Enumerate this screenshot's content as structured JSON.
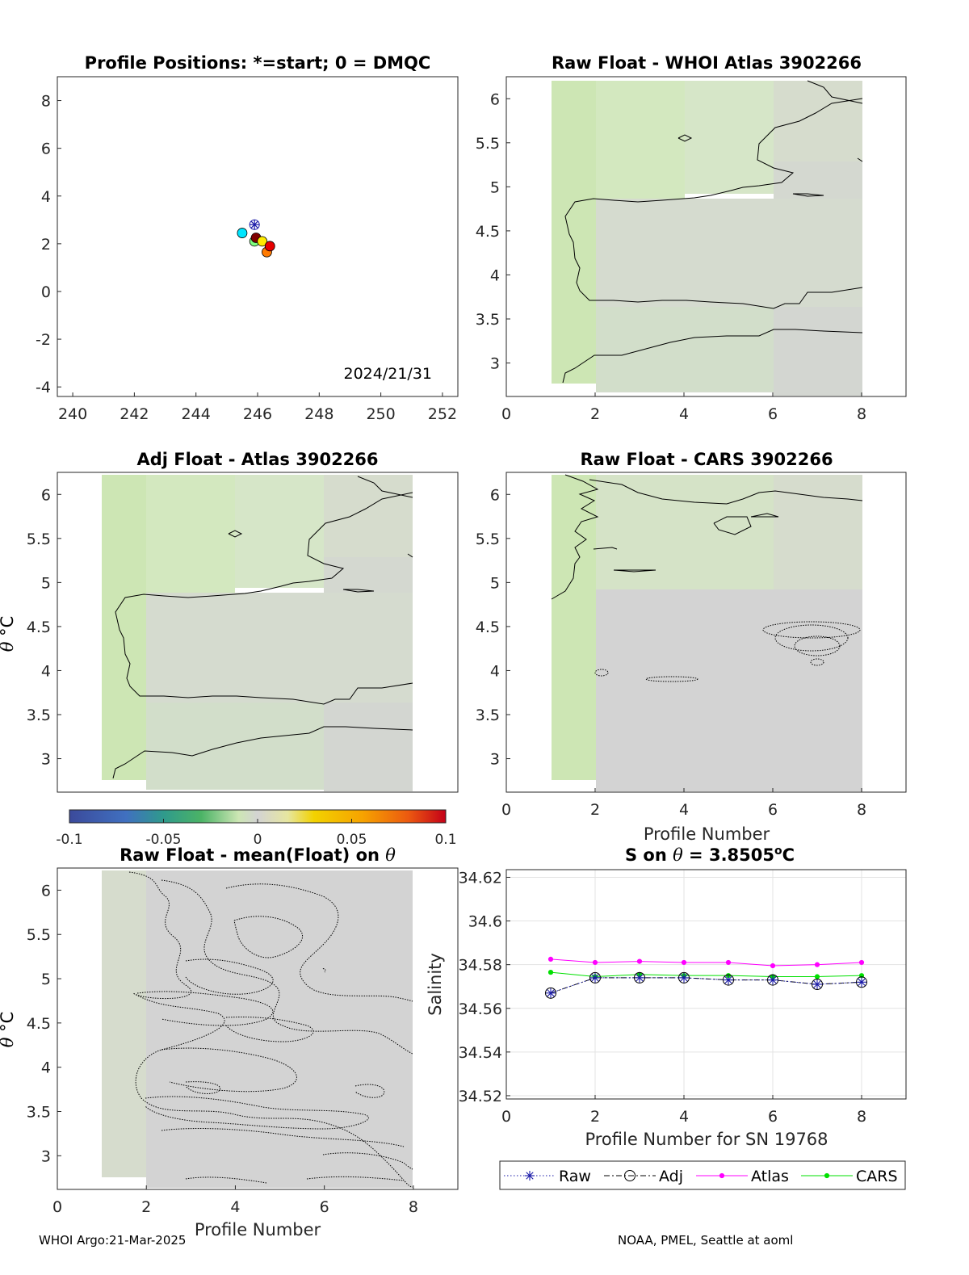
{
  "colors": {
    "green": "#cde6b4",
    "greenLight": "#d3e8bf",
    "greenPale": "#d6e6c8",
    "gray": "#d3d3d3",
    "grayGreen": "#d6dccd",
    "raw": "#1a1aa8",
    "adj": "#000000",
    "atlas": "#ff00ff",
    "cars": "#00e000"
  },
  "panels": {
    "positions": {
      "title": "Profile Positions: *=start; 0 = DMQC",
      "date_label": "2024/21/31"
    },
    "whoi": {
      "title": "Raw Float - WHOI Atlas  3902266"
    },
    "adj": {
      "title": "Adj Float - Atlas  3902266",
      "ylabel_theta": "θ",
      "ylabel_unit": "°C"
    },
    "cars": {
      "title": "Raw Float - CARS  3902266",
      "xlabel": "Profile Number"
    },
    "mean": {
      "title_text": "Raw Float - mean(Float) on ",
      "title_theta": "θ",
      "xlabel": "Profile Number",
      "ylabel_theta": "θ",
      "ylabel_unit": "°C"
    },
    "salinity": {
      "title_pre": "S on ",
      "title_theta": "θ",
      "title_value": " = 3.8505",
      "title_unit": "o",
      "title_c": "C",
      "xlabel": "Profile Number for SN 19768",
      "ylabel": "Salinity"
    }
  },
  "footer": {
    "left": "WHOI Argo:21-Mar-2025",
    "right": "NOAA, PMEL, Seattle at aoml"
  },
  "chart_data": [
    {
      "type": "scatter",
      "panel": "positions",
      "title": "Profile Positions: *=start; 0 = DMQC",
      "xlim": [
        239.5,
        252.5
      ],
      "ylim": [
        -4.4,
        9
      ],
      "xticks": [
        240,
        242,
        244,
        246,
        248,
        250,
        252
      ],
      "yticks": [
        -4,
        -2,
        0,
        2,
        4,
        6,
        8
      ],
      "start_marker": {
        "x": 245.9,
        "y": 2.8
      },
      "points": [
        {
          "x": 245.5,
          "y": 2.45,
          "color": "#00e5ff"
        },
        {
          "x": 245.9,
          "y": 2.1,
          "color": "#7fff7f"
        },
        {
          "x": 245.95,
          "y": 2.25,
          "color": "#800000"
        },
        {
          "x": 246.15,
          "y": 2.1,
          "color": "#ffea00"
        },
        {
          "x": 246.3,
          "y": 1.65,
          "color": "#ff7a00"
        },
        {
          "x": 246.4,
          "y": 1.9,
          "color": "#e60000"
        }
      ],
      "annotation": "2024/21/31",
      "grid": false
    },
    {
      "type": "heatmap",
      "panel": "whoi",
      "title": "Raw Float - WHOI Atlas  3902266",
      "xlim": [
        0,
        9
      ],
      "ylim": [
        2.62,
        6.25
      ],
      "xticks": [
        0,
        2,
        4,
        6,
        8
      ],
      "yticks": [
        3,
        3.5,
        4,
        4.5,
        5,
        5.5,
        6
      ]
    },
    {
      "type": "heatmap",
      "panel": "adj",
      "title": "Adj Float - Atlas  3902266",
      "xlim": [
        -1,
        8
      ],
      "ylim": [
        2.62,
        6.25
      ],
      "xticks": [],
      "yticks": [
        3,
        3.5,
        4,
        4.5,
        5,
        5.5,
        6
      ]
    },
    {
      "type": "heatmap",
      "panel": "cars",
      "title": "Raw Float - CARS  3902266",
      "xlabel": "Profile Number",
      "xlim": [
        0,
        9
      ],
      "ylim": [
        2.62,
        6.25
      ],
      "xticks": [
        0,
        2,
        4,
        6,
        8
      ],
      "yticks": [
        3,
        3.5,
        4,
        4.5,
        5,
        5.5,
        6
      ],
      "colorbar": {
        "range": [
          -0.1,
          0.1
        ],
        "ticks": [
          "-0.1",
          "-0.05",
          "0",
          "0.05",
          "0.1"
        ]
      }
    },
    {
      "type": "heatmap",
      "panel": "mean",
      "title": "Raw Float - mean(Float) on θ",
      "xlabel": "Profile Number",
      "xlim": [
        0,
        9
      ],
      "ylim": [
        2.62,
        6.25
      ],
      "xticks": [
        0,
        2,
        4,
        6,
        8
      ],
      "yticks": [
        3,
        3.5,
        4,
        4.5,
        5,
        5.5,
        6
      ]
    },
    {
      "type": "line",
      "panel": "salinity",
      "title": "S on θ = 3.8505°C",
      "xlabel": "Profile Number for SN 19768",
      "ylabel": "Salinity",
      "xlim": [
        0,
        9
      ],
      "ylim": [
        34.5185,
        34.6235
      ],
      "xticks": [
        0,
        2,
        4,
        6,
        8
      ],
      "yticks": [
        34.52,
        34.54,
        34.56,
        34.58,
        34.6,
        34.62
      ],
      "grid": true,
      "legend_position": "bottom",
      "x": [
        1,
        2,
        3,
        4,
        5,
        6,
        7,
        8
      ],
      "series": [
        {
          "name": "Raw",
          "values": [
            34.567,
            34.574,
            34.574,
            34.574,
            34.573,
            34.573,
            34.571,
            34.572
          ]
        },
        {
          "name": "Adj",
          "values": [
            34.567,
            34.574,
            34.574,
            34.574,
            34.573,
            34.573,
            34.571,
            34.572
          ]
        },
        {
          "name": "Atlas",
          "values": [
            34.5825,
            34.581,
            34.5815,
            34.581,
            34.581,
            34.5795,
            34.58,
            34.581
          ]
        },
        {
          "name": "CARS",
          "values": [
            34.5765,
            34.5745,
            34.5755,
            34.575,
            34.575,
            34.5745,
            34.5745,
            34.575
          ]
        }
      ]
    }
  ]
}
